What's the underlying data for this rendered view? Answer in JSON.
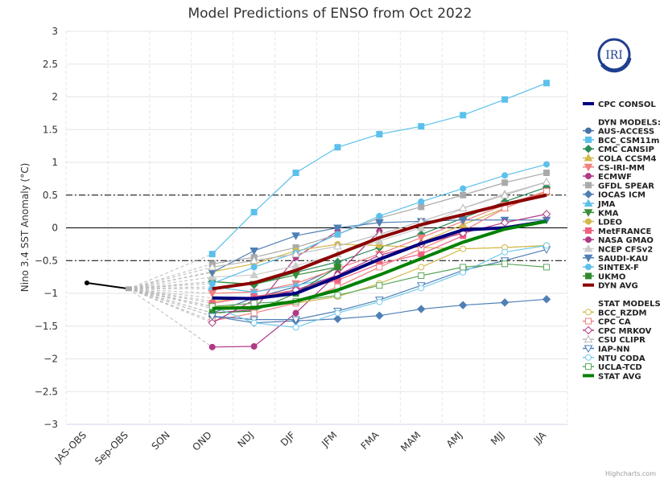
{
  "chart_data": {
    "type": "line",
    "title": "Model Predictions of ENSO from Oct 2022",
    "xlabel": "",
    "ylabel": "Nino 3.4 SST Anomaly (°C)",
    "ylim": [
      -3,
      3
    ],
    "yticks": [
      "3",
      "2.5",
      "2",
      "1.5",
      "1",
      "0.5",
      "0",
      "-0.5",
      "-1",
      "-1.5",
      "-2",
      "-2.5",
      "-3"
    ],
    "ytick_values": [
      3,
      2.5,
      2,
      1.5,
      1,
      0.5,
      0,
      -0.5,
      -1,
      -1.5,
      -2,
      -2.5,
      -3
    ],
    "categories": [
      "JAS-OBS",
      "Sep-OBS",
      "SON",
      "OND",
      "NDJ",
      "DJF",
      "JFM",
      "FMA",
      "MAM",
      "AMJ",
      "MJJ",
      "JJA"
    ],
    "reference_lines": [
      0.5,
      -0.5
    ],
    "observed": {
      "name": "Observed",
      "values": [
        -0.84,
        -0.93
      ]
    },
    "credit": "Highcharts.com",
    "logo_text": "IRI",
    "legend_placement": "right",
    "legend": {
      "cpc_consol": "CPC CONSOL",
      "dyn_header": "DYN MODELS:",
      "stat_header": "STAT MODELS:"
    },
    "series": [
      {
        "name": "CPC CONSOL",
        "group": "consol",
        "color": "#000080",
        "marker": "none",
        "width": 4,
        "values": [
          null,
          null,
          null,
          -1.07,
          -1.08,
          -1.0,
          -0.75,
          -0.48,
          -0.24,
          -0.03,
          0.0,
          0.1
        ]
      },
      {
        "name": "AUS-ACCESS",
        "group": "dyn",
        "color": "#4572A7",
        "marker": "circle",
        "values": [
          null,
          null,
          null,
          -1.3,
          -1.07,
          -0.9,
          -0.6,
          null,
          null,
          null,
          null,
          null
        ]
      },
      {
        "name": "BCC_CSM11m",
        "group": "dyn",
        "color": "#5BC0EB",
        "marker": "square",
        "values": [
          null,
          null,
          null,
          -0.4,
          0.24,
          0.84,
          1.23,
          1.43,
          1.55,
          1.72,
          1.96,
          2.21
        ]
      },
      {
        "name": "CMC CANSIP",
        "group": "dyn",
        "color": "#2E8B57",
        "marker": "diamond",
        "values": [
          null,
          null,
          null,
          -0.82,
          -0.87,
          -0.68,
          -0.52,
          -0.3,
          -0.1,
          0.15,
          0.4,
          0.62
        ]
      },
      {
        "name": "COLA CCSM4",
        "group": "dyn",
        "color": "#D4B84A",
        "marker": "triangle",
        "values": [
          null,
          null,
          null,
          -1.12,
          -1.07,
          -0.95,
          -0.75,
          -0.5,
          -0.22,
          0.05,
          0.3,
          0.55
        ]
      },
      {
        "name": "CS-IRI-MM",
        "group": "dyn",
        "color": "#F08080",
        "marker": "triangle-down",
        "values": [
          null,
          null,
          null,
          -1.0,
          -0.98,
          -0.85,
          -0.62,
          -0.4,
          -0.15,
          0.1,
          0.35,
          0.56
        ]
      },
      {
        "name": "ECMWF",
        "group": "dyn",
        "color": "#B03A85",
        "marker": "circle",
        "values": [
          null,
          null,
          null,
          -1.3,
          -1.25,
          -0.45,
          -0.05,
          null,
          null,
          null,
          null,
          null
        ]
      },
      {
        "name": "GFDL SPEAR",
        "group": "dyn",
        "color": "#AAAAAA",
        "marker": "square",
        "values": [
          null,
          null,
          null,
          -0.55,
          -0.45,
          -0.3,
          -0.1,
          0.15,
          0.32,
          0.5,
          0.69,
          0.84
        ]
      },
      {
        "name": "IOCAS ICM",
        "group": "dyn",
        "color": "#4E7FB5",
        "marker": "diamond",
        "values": [
          null,
          null,
          null,
          -1.35,
          -1.45,
          -1.42,
          -1.39,
          -1.34,
          -1.24,
          -1.18,
          -1.14,
          -1.09
        ]
      },
      {
        "name": "JMA",
        "group": "dyn",
        "color": "#5BC0EB",
        "marker": "triangle",
        "values": [
          null,
          null,
          null,
          -0.9,
          -0.98,
          -0.88,
          -0.75,
          null,
          null,
          null,
          null,
          null
        ]
      },
      {
        "name": "KMA",
        "group": "dyn",
        "color": "#3A8F3A",
        "marker": "triangle-down",
        "values": [
          null,
          null,
          null,
          -0.82,
          -0.86,
          -0.72,
          -0.6,
          null,
          null,
          null,
          null,
          null
        ]
      },
      {
        "name": "LDEO",
        "group": "dyn",
        "color": "#D4B84A",
        "marker": "circle",
        "values": [
          null,
          null,
          null,
          -0.67,
          -0.55,
          -0.35,
          -0.25,
          -0.27,
          -0.3,
          -0.32,
          -0.3,
          -0.27
        ]
      },
      {
        "name": "MetFRANCE",
        "group": "dyn",
        "color": "#F06080",
        "marker": "square",
        "values": [
          null,
          null,
          null,
          -1.15,
          -1.05,
          -0.95,
          -0.8,
          -0.55,
          -0.4,
          -0.12,
          null,
          null
        ]
      },
      {
        "name": "NASA GMAO",
        "group": "dyn",
        "color": "#B03A85",
        "marker": "circle",
        "values": [
          null,
          null,
          null,
          -1.82,
          -1.81,
          -1.3,
          -0.7,
          -0.05,
          null,
          null,
          null,
          null
        ]
      },
      {
        "name": "NCEP CFSv2",
        "group": "dyn",
        "color": "#CCCCCC",
        "marker": "triangle",
        "values": [
          null,
          null,
          null,
          -0.75,
          -0.72,
          -0.58,
          -0.4,
          -0.2,
          0.0,
          0.3,
          0.52,
          0.7
        ]
      },
      {
        "name": "SAUDI-KAU",
        "group": "dyn",
        "color": "#4E7FB5",
        "marker": "triangle-down",
        "values": [
          null,
          null,
          null,
          -0.68,
          -0.35,
          -0.12,
          0.0,
          0.08,
          0.1,
          0.12,
          0.12,
          0.12
        ]
      },
      {
        "name": "SINTEX-F",
        "group": "dyn",
        "color": "#5BC0EB",
        "marker": "circle",
        "values": [
          null,
          null,
          null,
          -0.85,
          -0.6,
          -0.38,
          -0.1,
          0.18,
          0.4,
          0.6,
          0.8,
          0.97
        ]
      },
      {
        "name": "UKMO",
        "group": "dyn",
        "color": "#2E8B2E",
        "marker": "square",
        "values": [
          null,
          null,
          null,
          -1.3,
          -1.27,
          -1.0,
          -0.6,
          null,
          null,
          null,
          null,
          null
        ]
      },
      {
        "name": "DYN AVG",
        "group": "dyn",
        "color": "#8B0000",
        "marker": "none",
        "width": 4,
        "values": [
          null,
          null,
          null,
          -0.93,
          -0.84,
          -0.65,
          -0.4,
          -0.15,
          0.05,
          0.2,
          0.36,
          0.5
        ]
      },
      {
        "name": "BCC_RZDM",
        "group": "stat",
        "color": "#D4B84A",
        "marker": "circle-open",
        "values": [
          null,
          null,
          null,
          -1.2,
          -1.2,
          -1.15,
          -1.05,
          -0.85,
          -0.6,
          -0.32,
          -0.3,
          -0.27
        ]
      },
      {
        "name": "CPC CA",
        "group": "stat",
        "color": "#F08080",
        "marker": "square-open",
        "values": [
          null,
          null,
          null,
          -1.42,
          -1.3,
          -1.15,
          -0.9,
          -0.6,
          -0.32,
          -0.05,
          0.3,
          0.56
        ]
      },
      {
        "name": "CPC MRKOV",
        "group": "stat",
        "color": "#B03A85",
        "marker": "diamond-open",
        "values": [
          null,
          null,
          null,
          -1.45,
          -1.1,
          -0.95,
          -0.72,
          -0.42,
          -0.25,
          -0.08,
          0.08,
          0.21
        ]
      },
      {
        "name": "CSU CLIPR",
        "group": "stat",
        "color": "#BBBBBB",
        "marker": "triangle-open",
        "values": [
          null,
          null,
          null,
          -0.6,
          -0.5,
          -0.4,
          -0.28,
          -0.1,
          0.1,
          0.3,
          0.5,
          0.7
        ]
      },
      {
        "name": "IAP-NN",
        "group": "stat",
        "color": "#4E7FB5",
        "marker": "triangle-down-open",
        "values": [
          null,
          null,
          null,
          -1.35,
          -1.4,
          -1.4,
          -1.27,
          -1.1,
          -0.88,
          -0.65,
          -0.5,
          -0.33
        ]
      },
      {
        "name": "NTU CODA",
        "group": "stat",
        "color": "#74CBEA",
        "marker": "circle-open",
        "values": [
          null,
          null,
          null,
          -1.2,
          -1.45,
          -1.52,
          -1.3,
          -1.13,
          -0.92,
          -0.68,
          -0.37,
          -0.27
        ]
      },
      {
        "name": "UCLA-TCD",
        "group": "stat",
        "color": "#5CA85C",
        "marker": "square-open",
        "values": [
          null,
          null,
          null,
          -1.2,
          -1.15,
          -1.12,
          -1.03,
          -0.88,
          -0.73,
          -0.6,
          -0.55,
          -0.6
        ]
      },
      {
        "name": "STAT AVG",
        "group": "stat",
        "color": "#008000",
        "marker": "none",
        "width": 4,
        "values": [
          null,
          null,
          null,
          -1.23,
          -1.22,
          -1.12,
          -0.95,
          -0.72,
          -0.47,
          -0.22,
          -0.02,
          0.1
        ]
      }
    ]
  }
}
